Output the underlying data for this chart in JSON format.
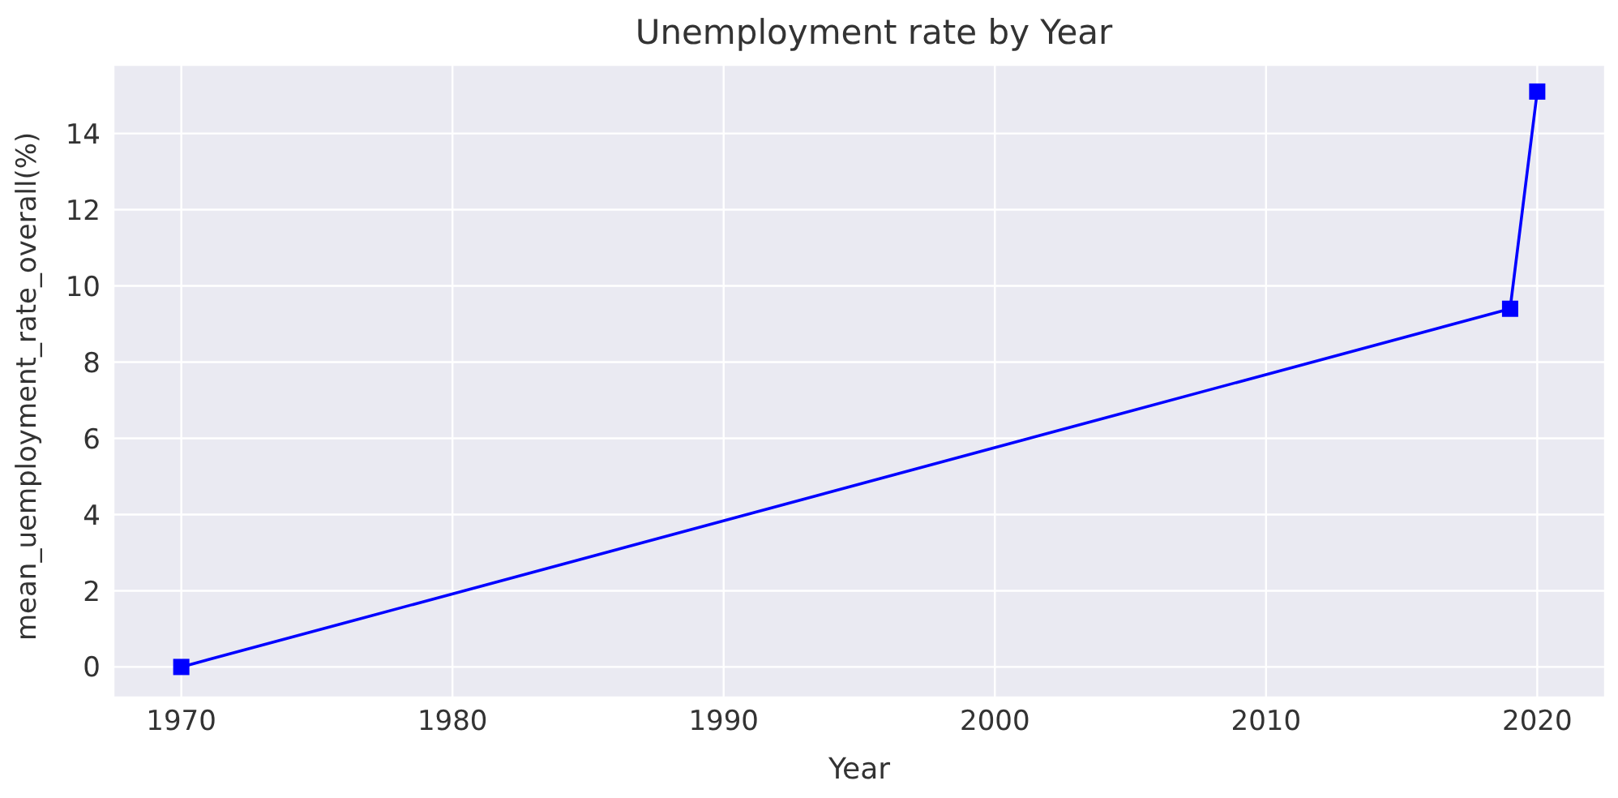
{
  "chart_data": {
    "type": "line",
    "title": "Unemployment rate by Year",
    "xlabel": "Year",
    "ylabel": "mean_uemployment_rate_overall(%)",
    "x": [
      1970,
      2019,
      2020
    ],
    "series": [
      {
        "color": "#0000ff",
        "values": [
          0,
          9.4,
          15.1
        ]
      }
    ],
    "xlim": [
      1967.5,
      2022.5
    ],
    "xticks": [
      1970,
      1980,
      1990,
      2000,
      2010,
      2020
    ],
    "ylim": [
      -0.8,
      15.8
    ],
    "yticks": [
      0,
      2,
      4,
      6,
      8,
      10,
      12,
      14
    ],
    "grid": true,
    "marker": "square",
    "line_style": "solid",
    "legend": false
  }
}
